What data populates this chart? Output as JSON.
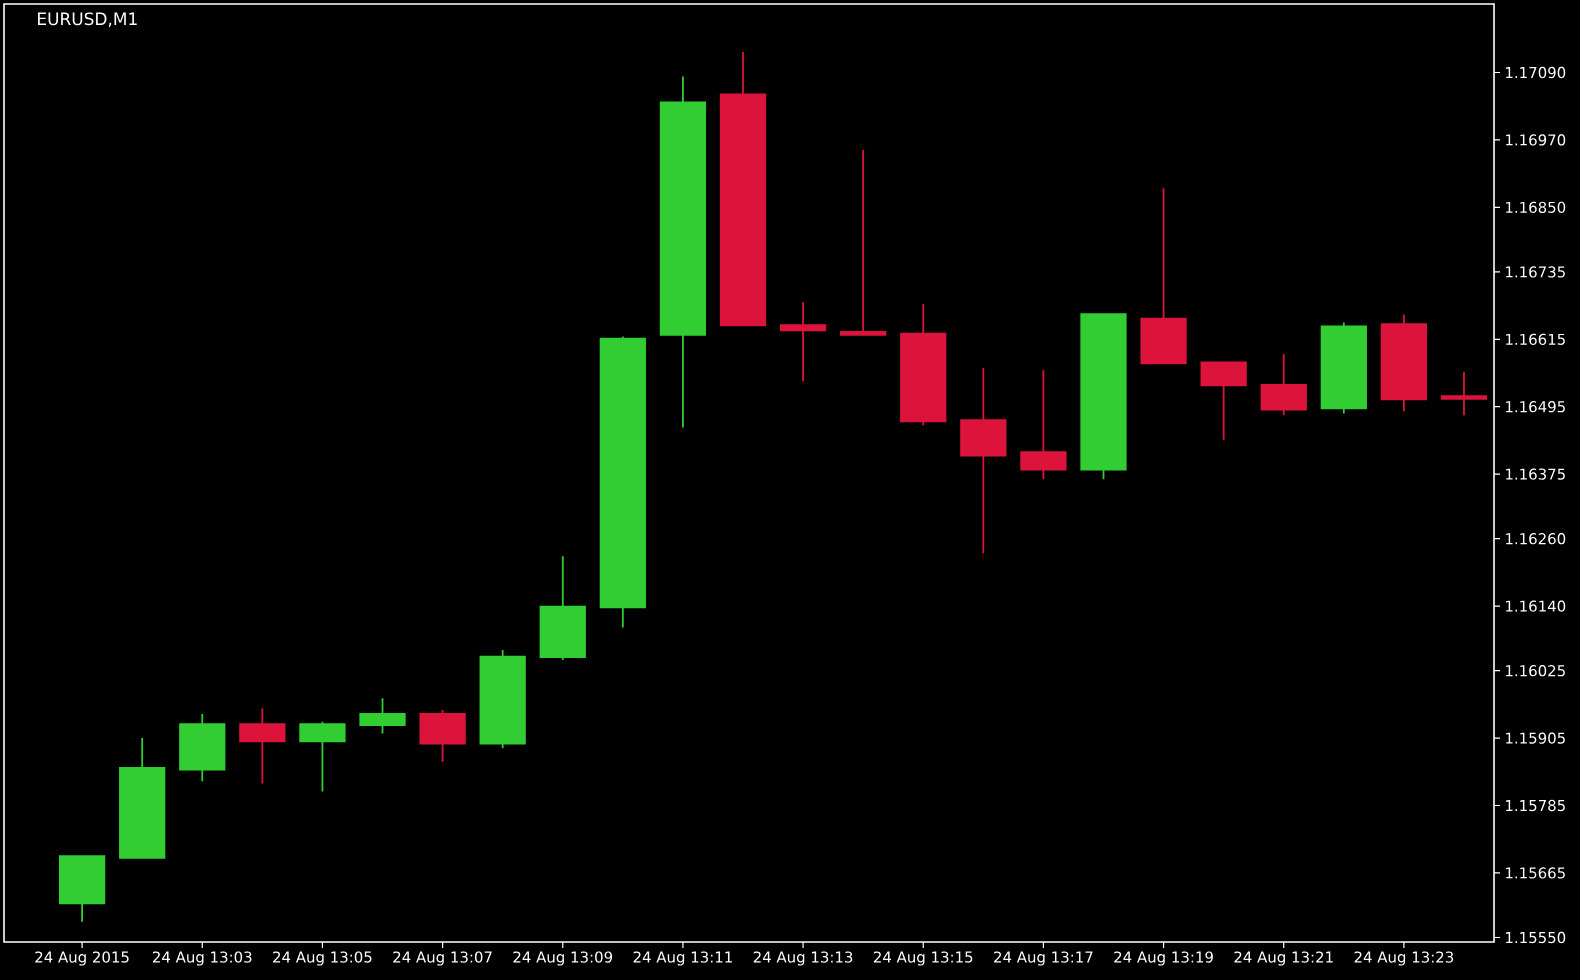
{
  "chart_data": {
    "type": "candlestick",
    "title": "EURUSD,M1",
    "categories": [
      "24 Aug 2015",
      null,
      "24 Aug 13:03",
      null,
      "24 Aug 13:05",
      null,
      "24 Aug 13:07",
      null,
      "24 Aug 13:09",
      null,
      "24 Aug 13:11",
      null,
      "24 Aug 13:13",
      null,
      "24 Aug 13:15",
      null,
      "24 Aug 13:17",
      null,
      "24 Aug 13:19",
      null,
      "24 Aug 13:21",
      null,
      "24 Aug 13:23",
      null
    ],
    "ohlc": [
      [
        1.15611,
        1.15695,
        1.15578,
        1.15695
      ],
      [
        1.15692,
        1.15905,
        1.15692,
        1.15852
      ],
      [
        1.15849,
        1.15948,
        1.15828,
        1.1593
      ],
      [
        1.1593,
        1.15958,
        1.15824,
        1.15899
      ],
      [
        1.15899,
        1.15934,
        1.1581,
        1.1593
      ],
      [
        1.15928,
        1.15976,
        1.15913,
        1.15948
      ],
      [
        1.15948,
        1.15955,
        1.15863,
        1.15895
      ],
      [
        1.15895,
        1.16062,
        1.15887,
        1.1605
      ],
      [
        1.16049,
        1.16229,
        1.16044,
        1.16139
      ],
      [
        1.16138,
        1.1662,
        1.16102,
        1.16616
      ],
      [
        1.16623,
        1.17083,
        1.16458,
        1.17037
      ],
      [
        1.17051,
        1.17127,
        1.1664,
        1.1664
      ],
      [
        1.1664,
        1.16681,
        1.1654,
        1.16631
      ],
      [
        1.16628,
        1.16952,
        1.16623,
        1.16623
      ],
      [
        1.16625,
        1.16678,
        1.16462,
        1.16469
      ],
      [
        1.16471,
        1.16564,
        1.16234,
        1.16408
      ],
      [
        1.16414,
        1.1656,
        1.16366,
        1.16383
      ],
      [
        1.16383,
        1.1666,
        1.16366,
        1.1666
      ],
      [
        1.16652,
        1.16884,
        1.16572,
        1.16572
      ],
      [
        1.16574,
        1.16574,
        1.16436,
        1.16533
      ],
      [
        1.16534,
        1.16589,
        1.1648,
        1.1649
      ],
      [
        1.16492,
        1.16645,
        1.16483,
        1.16638
      ],
      [
        1.16642,
        1.16659,
        1.16487,
        1.16508
      ],
      [
        1.16514,
        1.16557,
        1.1648,
        1.16509
      ]
    ],
    "colors": [
      "#32cd32",
      "#32cd32",
      "#32cd32",
      "#dc143c",
      "#32cd32",
      "#32cd32",
      "#dc143c",
      "#32cd32",
      "#32cd32",
      "#32cd32",
      "#32cd32",
      "#dc143c",
      "#dc143c",
      "#dc143c",
      "#dc143c",
      "#dc143c",
      "#dc143c",
      "#32cd32",
      "#dc143c",
      "#dc143c",
      "#dc143c",
      "#32cd32",
      "#dc143c",
      "#dc143c"
    ],
    "ylim": [
      1.15542,
      1.17212
    ],
    "yticks": [
      {
        "value": 1.1709,
        "label": "1.17090"
      },
      {
        "value": 1.1697,
        "label": "1.16970"
      },
      {
        "value": 1.1685,
        "label": "1.16850"
      },
      {
        "value": 1.16735,
        "label": "1.16735"
      },
      {
        "value": 1.16615,
        "label": "1.16615"
      },
      {
        "value": 1.16495,
        "label": "1.16495"
      },
      {
        "value": 1.16375,
        "label": "1.16375"
      },
      {
        "value": 1.1626,
        "label": "1.16260"
      },
      {
        "value": 1.1614,
        "label": "1.16140"
      },
      {
        "value": 1.16025,
        "label": "1.16025"
      },
      {
        "value": 1.15905,
        "label": "1.15905"
      },
      {
        "value": 1.15785,
        "label": "1.15785"
      },
      {
        "value": 1.15665,
        "label": "1.15665"
      },
      {
        "value": 1.1555,
        "label": "1.15550"
      }
    ]
  }
}
